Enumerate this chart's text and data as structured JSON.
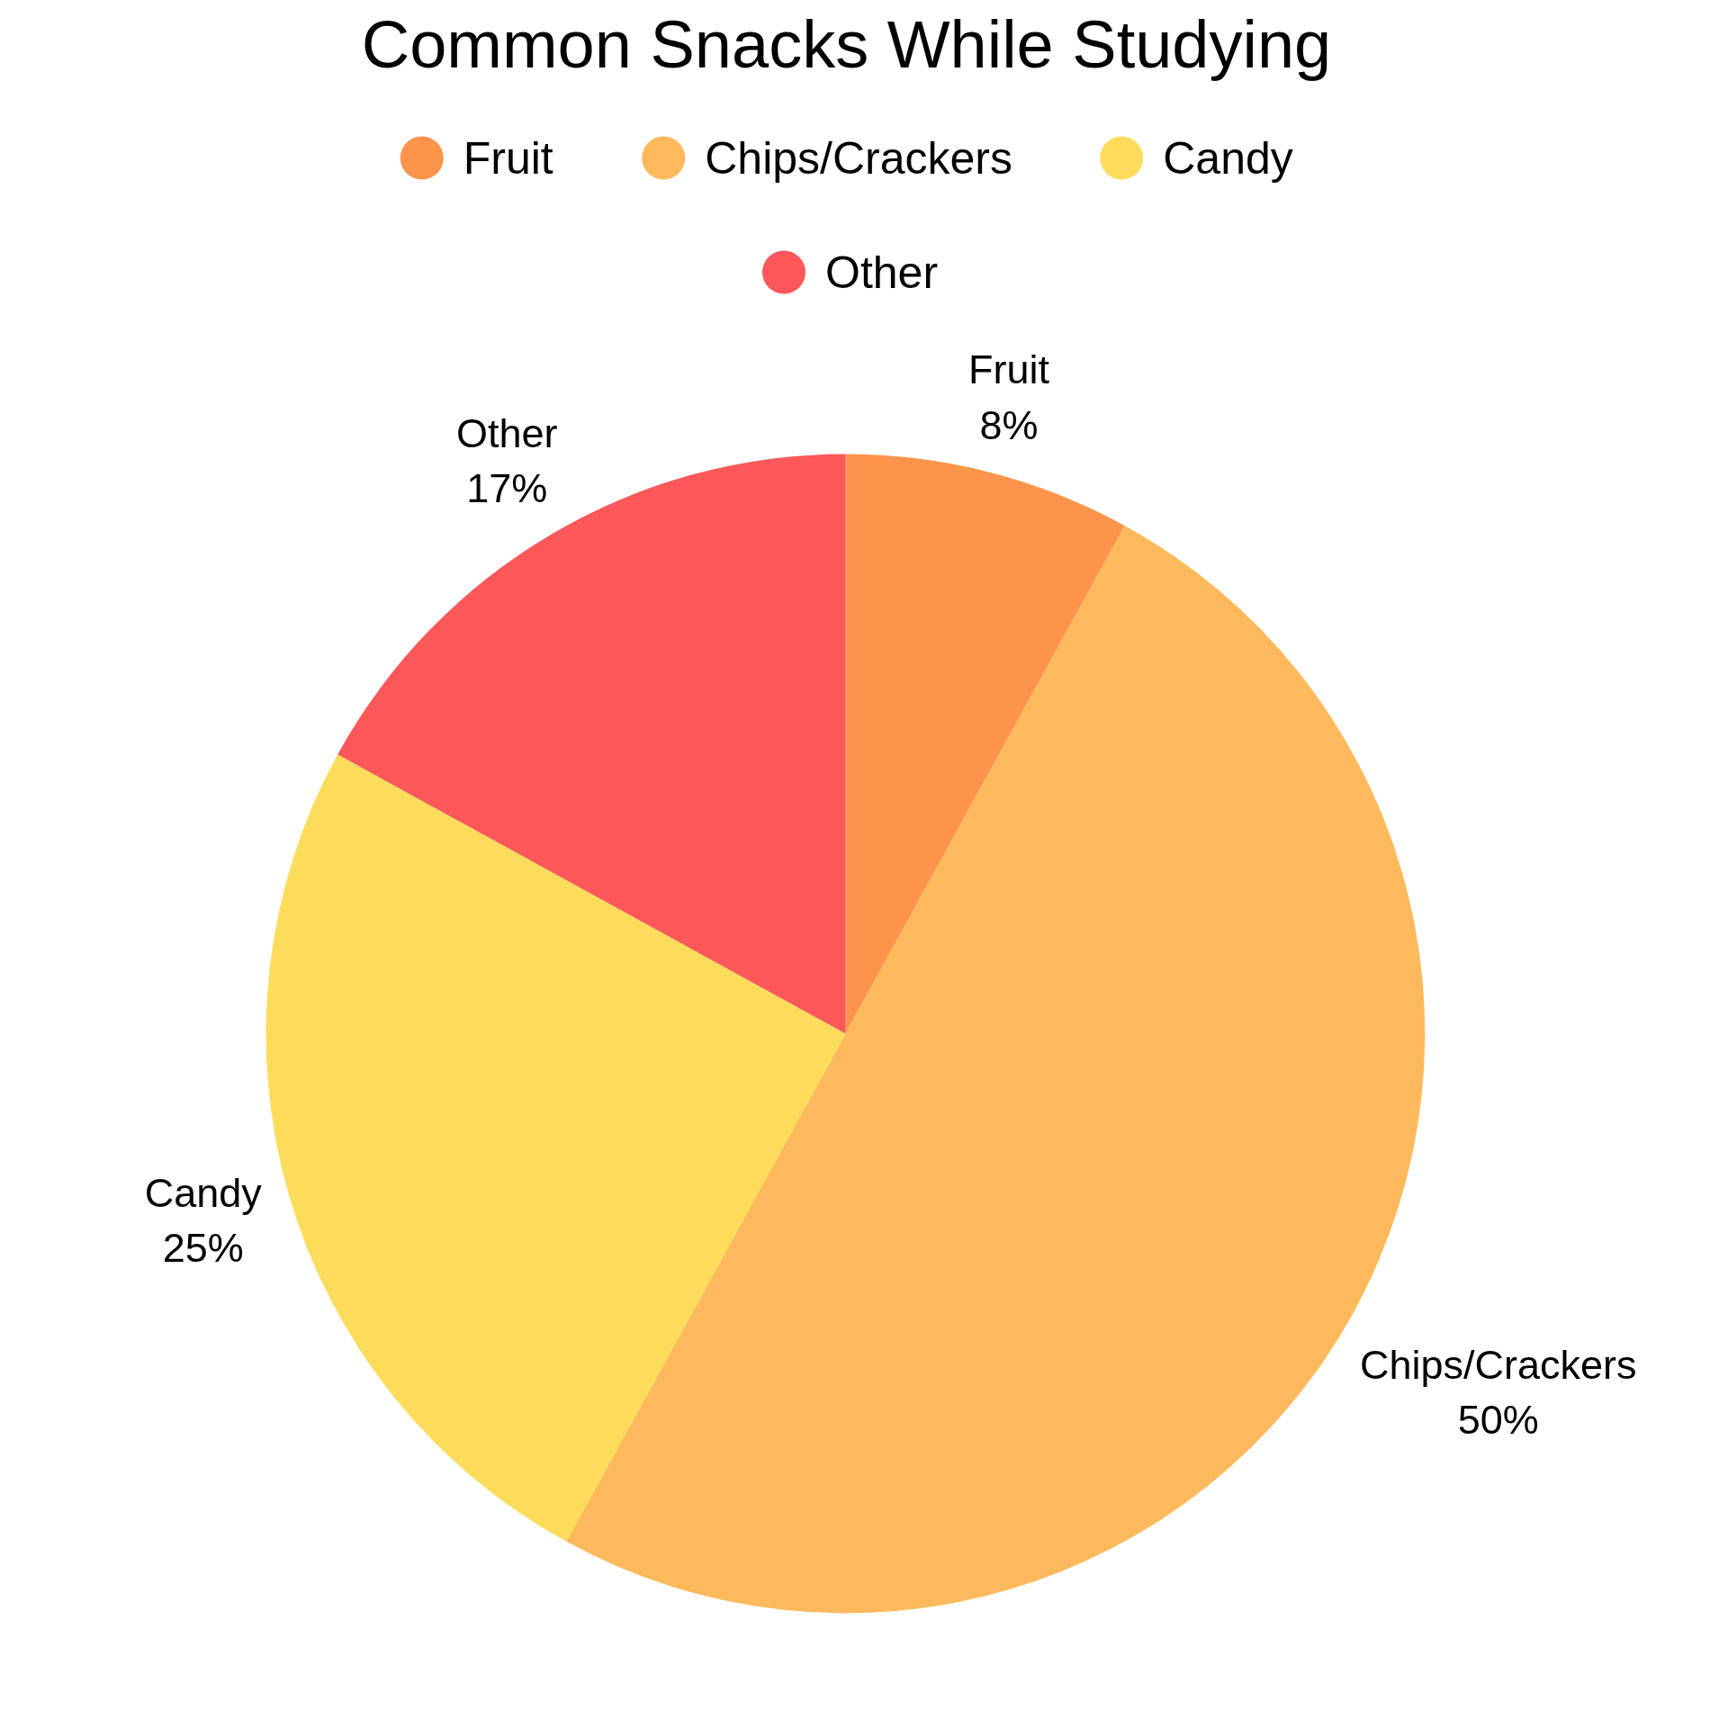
{
  "chart_data": {
    "type": "pie",
    "title": "Common Snacks While Studying",
    "categories": [
      "Fruit",
      "Chips/Crackers",
      "Candy",
      "Other"
    ],
    "values": [
      8,
      50,
      25,
      17
    ],
    "value_labels": [
      "8%",
      "50%",
      "25%",
      "17%"
    ],
    "colors": [
      "#fd944c",
      "#fdb95b",
      "#fddc5c",
      "#fd5859"
    ],
    "legend": "top"
  }
}
